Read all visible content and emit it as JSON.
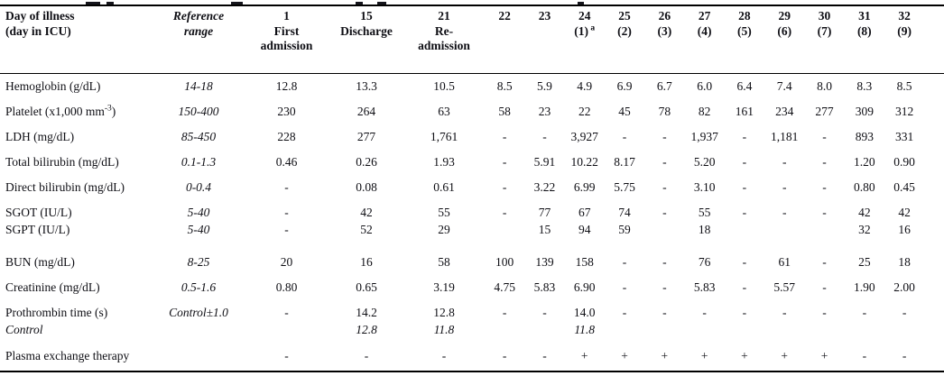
{
  "table": {
    "header": {
      "row_label_lines": [
        "Day of illness",
        "(day in ICU)"
      ],
      "reference_lines": [
        "Reference",
        "range"
      ],
      "day_columns": [
        {
          "day": "1",
          "sub_lines": [
            "First",
            "admission"
          ]
        },
        {
          "day": "15",
          "sub_lines": [
            "Discharge"
          ]
        },
        {
          "day": "21",
          "sub_lines": [
            "Re-",
            "admission"
          ]
        },
        {
          "day": "22",
          "sub_lines": []
        },
        {
          "day": "23",
          "sub_lines": []
        },
        {
          "day": "24",
          "sub_lines": [
            "(1)"
          ],
          "sup": "a"
        },
        {
          "day": "25",
          "sub_lines": [
            "(2)"
          ]
        },
        {
          "day": "26",
          "sub_lines": [
            "(3)"
          ]
        },
        {
          "day": "27",
          "sub_lines": [
            "(4)"
          ]
        },
        {
          "day": "28",
          "sub_lines": [
            "(5)"
          ]
        },
        {
          "day": "29",
          "sub_lines": [
            "(6)"
          ]
        },
        {
          "day": "30",
          "sub_lines": [
            "(7)"
          ]
        },
        {
          "day": "31",
          "sub_lines": [
            "(8)"
          ]
        },
        {
          "day": "32",
          "sub_lines": [
            "(9)"
          ]
        }
      ]
    },
    "rows": [
      {
        "label_parts": [
          {
            "t": "Hemoglobin (g/dL)"
          }
        ],
        "ref": "14-18",
        "spacing": "normal",
        "values": [
          "12.8",
          "13.3",
          "10.5",
          "8.5",
          "5.9",
          "4.9",
          "6.9",
          "6.7",
          "6.0",
          "6.4",
          "7.4",
          "8.0",
          "8.3",
          "8.5"
        ]
      },
      {
        "label_parts": [
          {
            "t": "Platelet (x1,000 mm"
          },
          {
            "t": "-3",
            "sup": true
          },
          {
            "t": ")"
          }
        ],
        "ref": "150-400",
        "spacing": "normal",
        "values": [
          "230",
          "264",
          "63",
          "58",
          "23",
          "22",
          "45",
          "78",
          "82",
          "161",
          "234",
          "277",
          "309",
          "312"
        ]
      },
      {
        "label_parts": [
          {
            "t": "LDH (mg/dL)"
          }
        ],
        "ref": "85-450",
        "spacing": "normal",
        "values": [
          "228",
          "277",
          "1,761",
          "-",
          "-",
          "3,927",
          "-",
          "-",
          "1,937",
          "-",
          "1,181",
          "-",
          "893",
          "331"
        ]
      },
      {
        "label_parts": [
          {
            "t": "Total bilirubin (mg/dL)"
          }
        ],
        "ref": "0.1-1.3",
        "spacing": "normal",
        "values": [
          "0.46",
          "0.26",
          "1.93",
          "-",
          "5.91",
          "10.22",
          "8.17",
          "-",
          "5.20",
          "-",
          "-",
          "-",
          "1.20",
          "0.90"
        ]
      },
      {
        "label_parts": [
          {
            "t": "Direct bilirubin (mg/dL)"
          }
        ],
        "ref": "0-0.4",
        "spacing": "normal",
        "values": [
          "-",
          "0.08",
          "0.61",
          "-",
          "3.22",
          "6.99",
          "5.75",
          "-",
          "3.10",
          "-",
          "-",
          "-",
          "0.80",
          "0.45"
        ]
      },
      {
        "label_parts": [
          {
            "t": "SGOT (IU/L)"
          }
        ],
        "ref": "5-40",
        "spacing": "tight-bottom",
        "values": [
          "-",
          "42",
          "55",
          "-",
          "77",
          "67",
          "74",
          "-",
          "55",
          "-",
          "-",
          "-",
          "42",
          "42"
        ]
      },
      {
        "label_parts": [
          {
            "t": "SGPT (IU/L)"
          }
        ],
        "ref": "5-40",
        "spacing": "tight-top",
        "values": [
          "-",
          "52",
          "29",
          "",
          "15",
          "94",
          "59",
          "",
          "18",
          "",
          "",
          "",
          "32",
          "16"
        ]
      },
      {
        "label_parts": [
          {
            "t": "BUN (mg/dL)"
          }
        ],
        "ref": "8-25",
        "spacing": "gap-top",
        "values": [
          "20",
          "16",
          "58",
          "100",
          "139",
          "158",
          "-",
          "-",
          "76",
          "-",
          "61",
          "-",
          "25",
          "18"
        ]
      },
      {
        "label_parts": [
          {
            "t": "Creatinine (mg/dL)"
          }
        ],
        "ref": "0.5-1.6",
        "spacing": "normal",
        "values": [
          "0.80",
          "0.65",
          "3.19",
          "4.75",
          "5.83",
          "6.90",
          "-",
          "-",
          "5.83",
          "-",
          "5.57",
          "-",
          "1.90",
          "2.00"
        ]
      },
      {
        "label_parts": [
          {
            "t": "Prothrombin time (s)"
          }
        ],
        "ref": "Control±1.0",
        "spacing": "tight-bottom",
        "values": [
          "-",
          "14.2",
          "12.8",
          "-",
          "-",
          "14.0",
          "-",
          "-",
          "-",
          "-",
          "-",
          "-",
          "-",
          "-"
        ]
      },
      {
        "label_parts": [
          {
            "t": "Control"
          }
        ],
        "italic": true,
        "ref": "",
        "spacing": "tight-top",
        "values": [
          "",
          "12.8",
          "11.8",
          "",
          "",
          "11.8",
          "",
          "",
          "",
          "",
          "",
          "",
          "",
          ""
        ]
      },
      {
        "label_parts": [
          {
            "t": "Plasma exchange therapy"
          }
        ],
        "ref": "",
        "spacing": "last",
        "values": [
          "-",
          "-",
          "-",
          "-",
          "-",
          "+",
          "+",
          "+",
          "+",
          "+",
          "+",
          "+",
          "-",
          "-"
        ]
      }
    ]
  }
}
